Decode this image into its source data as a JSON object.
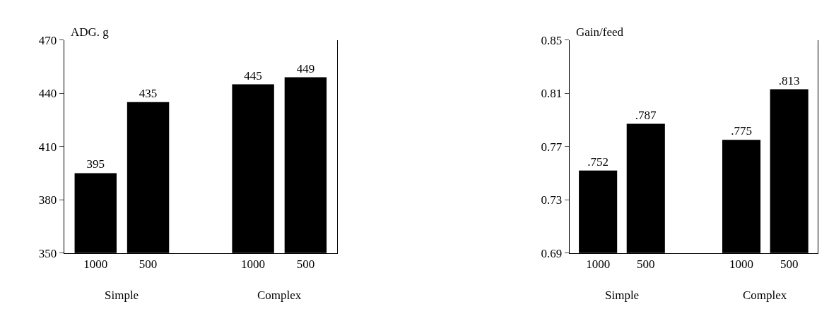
{
  "chart_data": [
    {
      "type": "bar",
      "ylabel": "ADG. g",
      "categories": [
        "1000",
        "500",
        null,
        "1000",
        "500"
      ],
      "values": [
        395,
        435,
        null,
        445,
        449
      ],
      "color": "#000000",
      "ylim": [
        350,
        470
      ],
      "yticks": [
        350,
        380,
        410,
        440,
        470
      ],
      "data_labels": true,
      "annotations": [
        "Simple",
        "Complex"
      ]
    },
    {
      "type": "bar",
      "ylabel": "Gain/feed",
      "categories": [
        "1000",
        "500",
        null,
        "1000",
        "500"
      ],
      "values": [
        0.752,
        0.787,
        null,
        0.775,
        0.813
      ],
      "value_labels": [
        ".752",
        ".787",
        null,
        ".775",
        ".813"
      ],
      "color": "#000000",
      "ylim": [
        0.69,
        0.85
      ],
      "yticks": [
        0.69,
        0.73,
        0.77,
        0.81,
        0.85
      ],
      "annotations": [
        "Simple",
        "Complex"
      ]
    }
  ]
}
